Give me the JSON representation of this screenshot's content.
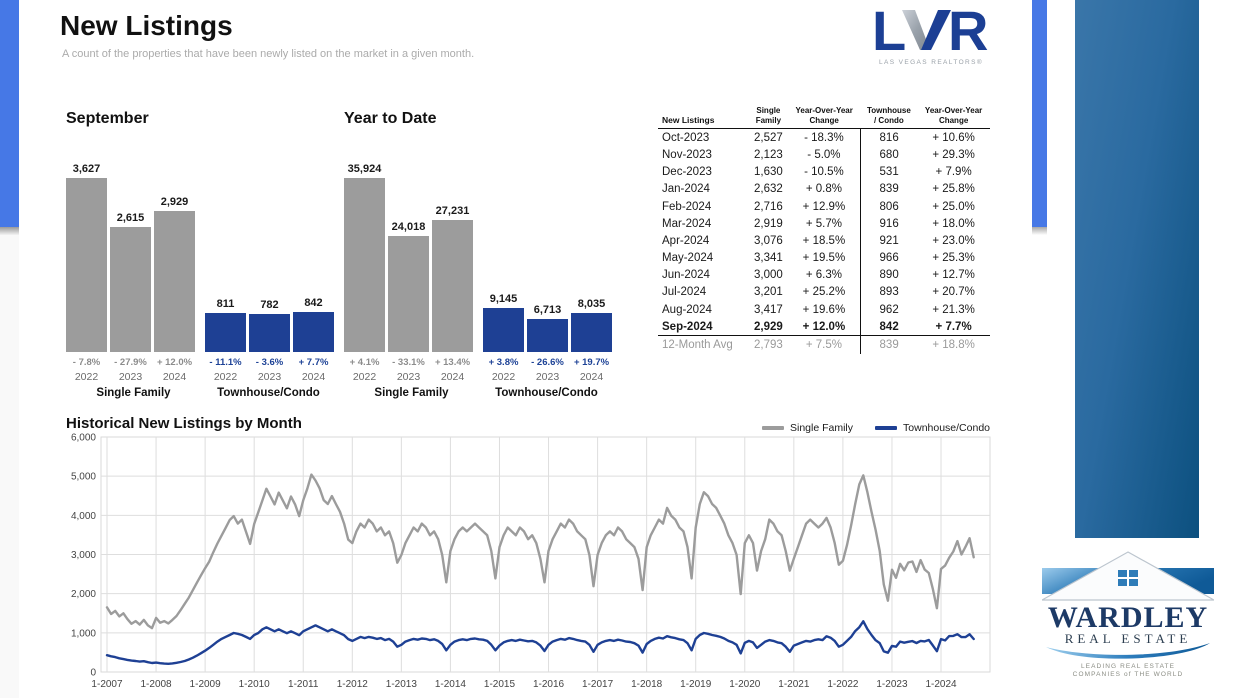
{
  "page": {
    "title": "New Listings",
    "subtitle": "A count of the properties that have been newly listed on the market in a given month."
  },
  "logo_lvr": {
    "letter_l": "L",
    "letter_r": "R",
    "tagline": "LAS VEGAS REALTORS®"
  },
  "colors": {
    "single_family": "#9c9c9c",
    "townhouse_condo": "#1e4094",
    "pct_gray": "#8c8c8c",
    "pct_blue": "#1d4296",
    "accent_strip": "#4678e6",
    "banner_left": "#3a76a9",
    "banner_right": "#0c507f"
  },
  "table": {
    "headers": [
      [
        "New Listings"
      ],
      [
        "Single",
        "Family"
      ],
      [
        "Year-Over-Year",
        "Change"
      ],
      [
        "Townhouse",
        "/ Condo"
      ],
      [
        "Year-Over-Year",
        "Change"
      ]
    ],
    "rows": [
      [
        "Oct-2023",
        "2,527",
        "- 18.3%",
        "816",
        "+ 10.6%"
      ],
      [
        "Nov-2023",
        "2,123",
        "- 5.0%",
        "680",
        "+ 29.3%"
      ],
      [
        "Dec-2023",
        "1,630",
        "- 10.5%",
        "531",
        "+ 7.9%"
      ],
      [
        "Jan-2024",
        "2,632",
        "+ 0.8%",
        "839",
        "+ 25.8%"
      ],
      [
        "Feb-2024",
        "2,716",
        "+ 12.9%",
        "806",
        "+ 25.0%"
      ],
      [
        "Mar-2024",
        "2,919",
        "+ 5.7%",
        "916",
        "+ 18.0%"
      ],
      [
        "Apr-2024",
        "3,076",
        "+ 18.5%",
        "921",
        "+ 23.0%"
      ],
      [
        "May-2024",
        "3,341",
        "+ 19.5%",
        "966",
        "+ 25.3%"
      ],
      [
        "Jun-2024",
        "3,000",
        "+ 6.3%",
        "890",
        "+ 12.7%"
      ],
      [
        "Jul-2024",
        "3,201",
        "+ 25.2%",
        "893",
        "+ 20.7%"
      ],
      [
        "Aug-2024",
        "3,417",
        "+ 19.6%",
        "962",
        "+ 21.3%"
      ],
      [
        "Sep-2024",
        "2,929",
        "+ 12.0%",
        "842",
        "+ 7.7%"
      ]
    ],
    "bold_row": "Sep-2024",
    "avg_row": [
      "12-Month Avg",
      "2,793",
      "+ 7.5%",
      "839",
      "+ 18.8%"
    ]
  },
  "chart_data": [
    {
      "type": "bar",
      "title": "September",
      "categories": [
        "2022",
        "2023",
        "2024"
      ],
      "series": [
        {
          "name": "Single Family",
          "color": "#9c9c9c",
          "values": [
            3627,
            2615,
            2929
          ],
          "pct_change": [
            "- 7.8%",
            "- 27.9%",
            "+ 12.0%"
          ]
        },
        {
          "name": "Townhouse/Condo",
          "color": "#1e4094",
          "values": [
            811,
            782,
            842
          ],
          "pct_change": [
            "- 11.1%",
            "- 3.6%",
            "+ 7.7%"
          ]
        }
      ]
    },
    {
      "type": "bar",
      "title": "Year to Date",
      "categories": [
        "2022",
        "2023",
        "2024"
      ],
      "series": [
        {
          "name": "Single Family",
          "color": "#9c9c9c",
          "values": [
            35924,
            24018,
            27231
          ],
          "pct_change": [
            "+ 4.1%",
            "- 33.1%",
            "+ 13.4%"
          ]
        },
        {
          "name": "Townhouse/Condo",
          "color": "#1e4094",
          "values": [
            9145,
            6713,
            8035
          ],
          "pct_change": [
            "+ 3.8%",
            "- 26.6%",
            "+ 19.7%"
          ]
        }
      ]
    },
    {
      "type": "line",
      "title": "Historical New Listings by Month",
      "x_start": "1-2007",
      "x_end": "9-2024",
      "points_per_year": 12,
      "x_tick_labels": [
        "1-2007",
        "1-2008",
        "1-2009",
        "1-2010",
        "1-2011",
        "1-2012",
        "1-2013",
        "1-2014",
        "1-2015",
        "1-2016",
        "1-2017",
        "1-2018",
        "1-2019",
        "1-2020",
        "1-2021",
        "1-2022",
        "1-2023",
        "1-2024"
      ],
      "ylim": [
        0,
        6000
      ],
      "y_tick_labels": [
        "6,000",
        "5,000",
        "4,000",
        "3,000",
        "2,000",
        "1,000",
        "0"
      ],
      "grid": true,
      "legend_position": "top-right",
      "series": [
        {
          "name": "Single Family",
          "color": "#9c9c9c",
          "values": [
            1650,
            1480,
            1560,
            1420,
            1500,
            1350,
            1230,
            1300,
            1210,
            1330,
            1190,
            1120,
            1380,
            1260,
            1300,
            1240,
            1330,
            1430,
            1580,
            1740,
            1900,
            2090,
            2280,
            2470,
            2650,
            2820,
            3060,
            3280,
            3480,
            3680,
            3880,
            3980,
            3790,
            3890,
            3580,
            3270,
            3780,
            4080,
            4380,
            4680,
            4480,
            4280,
            4580,
            4380,
            4180,
            4480,
            4280,
            3980,
            4380,
            4680,
            5040,
            4890,
            4690,
            4390,
            4290,
            4490,
            4290,
            4090,
            3790,
            3380,
            3290,
            3590,
            3790,
            3690,
            3890,
            3790,
            3590,
            3690,
            3490,
            3590,
            3290,
            2790,
            2990,
            3290,
            3490,
            3690,
            3590,
            3790,
            3690,
            3490,
            3590,
            3390,
            2990,
            2290,
            3090,
            3390,
            3590,
            3690,
            3590,
            3690,
            3790,
            3690,
            3590,
            3490,
            3090,
            2390,
            3190,
            3490,
            3690,
            3590,
            3490,
            3690,
            3590,
            3390,
            3490,
            3290,
            2890,
            2290,
            3090,
            3390,
            3590,
            3790,
            3690,
            3890,
            3790,
            3590,
            3490,
            3390,
            2990,
            2190,
            2990,
            3290,
            3490,
            3590,
            3490,
            3690,
            3590,
            3390,
            3290,
            3190,
            2890,
            2090,
            3190,
            3490,
            3690,
            3890,
            3790,
            4190,
            3990,
            3890,
            3690,
            3590,
            3190,
            2390,
            3690,
            4290,
            4590,
            4490,
            4290,
            4190,
            3990,
            3790,
            3490,
            3290,
            2990,
            1990,
            3290,
            3490,
            3290,
            2590,
            3090,
            3390,
            3890,
            3790,
            3590,
            3490,
            3090,
            2590,
            2890,
            3190,
            3490,
            3790,
            3890,
            3790,
            3690,
            3790,
            3934,
            3690,
            3290,
            2740,
            2840,
            3240,
            3740,
            4290,
            4790,
            5020,
            4590,
            4090,
            3627,
            3093,
            2235,
            1821,
            2611,
            2406,
            2762,
            2596,
            2796,
            2822,
            2557,
            2857,
            2615,
            2527,
            2123,
            1630,
            2632,
            2716,
            2919,
            3076,
            3341,
            3000,
            3201,
            3417,
            2929
          ]
        },
        {
          "name": "Townhouse/Condo",
          "color": "#1e4094",
          "values": [
            430,
            400,
            380,
            350,
            330,
            310,
            290,
            280,
            265,
            275,
            250,
            230,
            240,
            225,
            215,
            210,
            220,
            235,
            255,
            280,
            320,
            365,
            420,
            480,
            545,
            615,
            695,
            775,
            845,
            895,
            945,
            995,
            975,
            945,
            895,
            845,
            945,
            995,
            1090,
            1140,
            1090,
            1040,
            1090,
            1040,
            990,
            1040,
            990,
            940,
            1040,
            1090,
            1140,
            1190,
            1140,
            1090,
            1040,
            1090,
            1040,
            990,
            940,
            840,
            795,
            845,
            895,
            865,
            895,
            875,
            845,
            865,
            815,
            845,
            775,
            645,
            695,
            775,
            815,
            845,
            825,
            855,
            845,
            815,
            835,
            795,
            715,
            555,
            695,
            775,
            815,
            835,
            815,
            845,
            855,
            835,
            825,
            795,
            695,
            555,
            675,
            755,
            795,
            815,
            795,
            825,
            805,
            785,
            795,
            755,
            675,
            535,
            695,
            775,
            815,
            845,
            825,
            865,
            845,
            815,
            795,
            775,
            695,
            515,
            695,
            755,
            795,
            815,
            795,
            825,
            805,
            775,
            765,
            735,
            675,
            495,
            715,
            795,
            845,
            875,
            855,
            915,
            885,
            865,
            835,
            815,
            735,
            555,
            845,
            945,
            995,
            975,
            945,
            925,
            895,
            855,
            795,
            755,
            695,
            475,
            745,
            795,
            755,
            615,
            695,
            775,
            815,
            795,
            755,
            735,
            645,
            515,
            675,
            715,
            755,
            795,
            775,
            815,
            835,
            815,
            912,
            875,
            795,
            645,
            695,
            795,
            895,
            1045,
            1145,
            1295,
            1095,
            945,
            811,
            738,
            526,
            492,
            667,
            645,
            776,
            749,
            771,
            790,
            740,
            793,
            782,
            816,
            680,
            531,
            839,
            806,
            916,
            921,
            966,
            890,
            893,
            962,
            842
          ]
        }
      ]
    }
  ],
  "wardley": {
    "name": "WARDLEY",
    "sub": "REAL ESTATE",
    "tagline_1": "LEADING REAL ESTATE",
    "tagline_2": "COMPANIES of THE WORLD"
  }
}
